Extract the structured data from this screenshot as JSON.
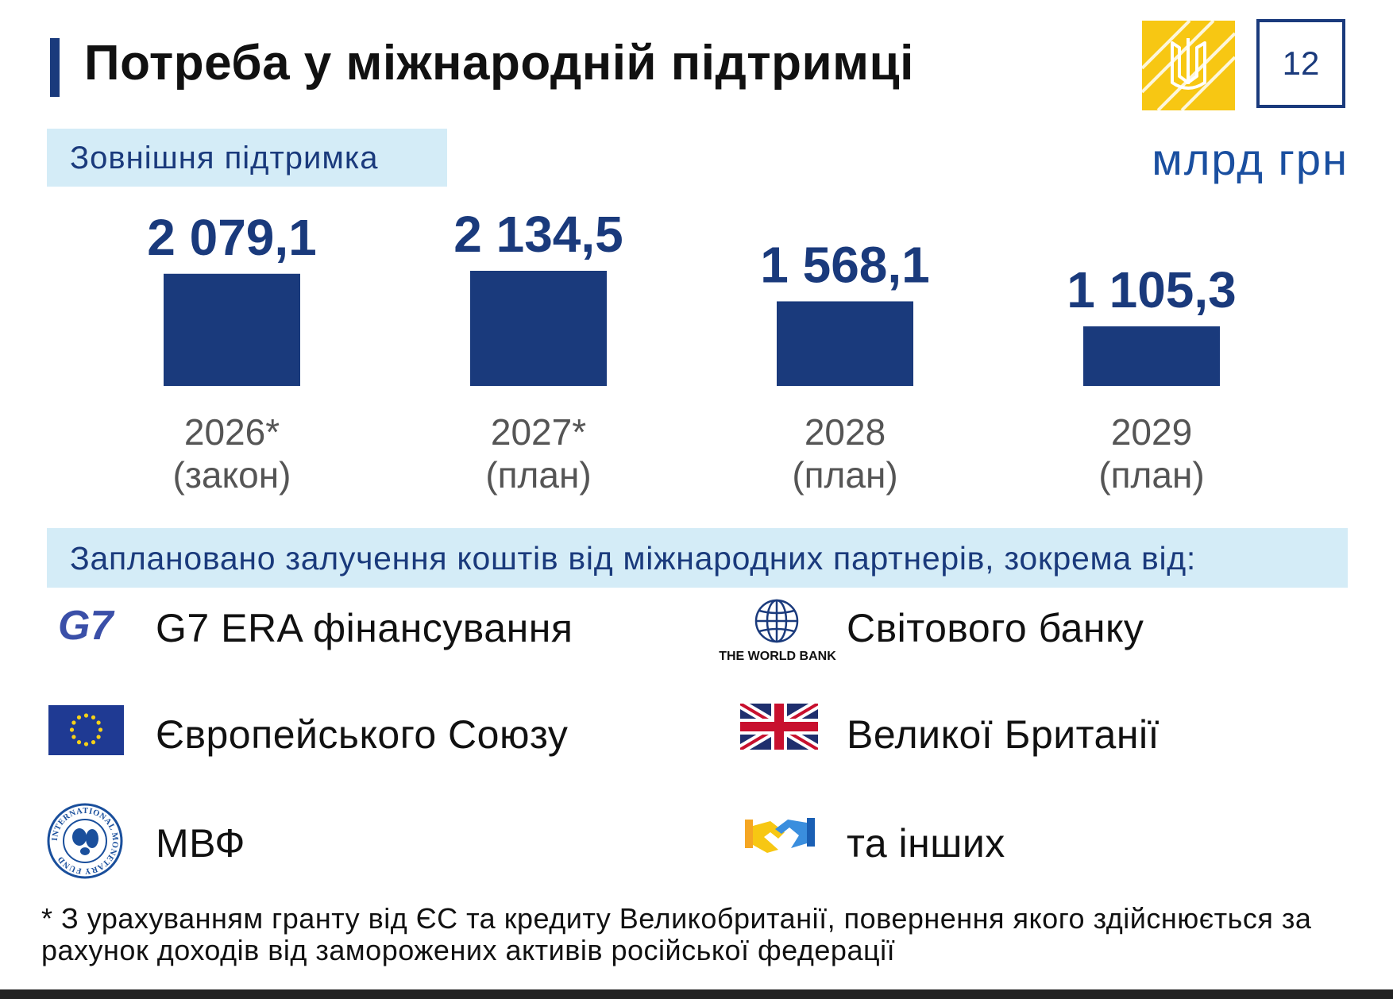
{
  "header": {
    "title": "Потреба у міжнародній підтримці",
    "page_number": "12"
  },
  "subtitle": "Зовнішня підтримка",
  "unit": "млрд грн",
  "chart_data": {
    "type": "bar",
    "title": "",
    "categories": [
      "2026*",
      "2027*",
      "2028",
      "2029"
    ],
    "category_notes": [
      "(закон)",
      "(план)",
      "(план)",
      "(план)"
    ],
    "values": [
      2079.1,
      2134.5,
      1568.1,
      1105.3
    ],
    "value_labels": [
      "2 079,1",
      "2 134,5",
      "1 568,1",
      "1 105,3"
    ],
    "xlabel": "",
    "ylabel": "",
    "ylim": [
      0,
      2134.5
    ],
    "grid": false,
    "bar_color": "#1a3a7c"
  },
  "partners": {
    "heading": "Заплановано залучення коштів від  міжнародних партнерів, зокрема від:",
    "items": [
      {
        "label": "G7 ERA фінансування",
        "icon": "g7-logo-icon",
        "logo_text": "G7"
      },
      {
        "label": "Світового банку",
        "icon": "world-bank-logo-icon",
        "logo_text": "THE WORLD BANK"
      },
      {
        "label": "Європейського Союзу",
        "icon": "eu-flag-icon"
      },
      {
        "label": "Великої Британії",
        "icon": "uk-flag-icon"
      },
      {
        "label": "МВФ",
        "icon": "imf-seal-icon",
        "logo_text": "INTERNATIONAL MONETARY FUND"
      },
      {
        "label": "та інших",
        "icon": "handshake-icon"
      }
    ]
  },
  "footnote": "* З урахуванням гранту від ЄС та кредиту Великобританії, повернення якого здійснюється за рахунок доходів від заморожених активів російської федерації",
  "colors": {
    "brand_blue": "#1a3a7c",
    "band_light_blue": "#d4ecf7",
    "emblem_yellow": "#f7c713"
  }
}
